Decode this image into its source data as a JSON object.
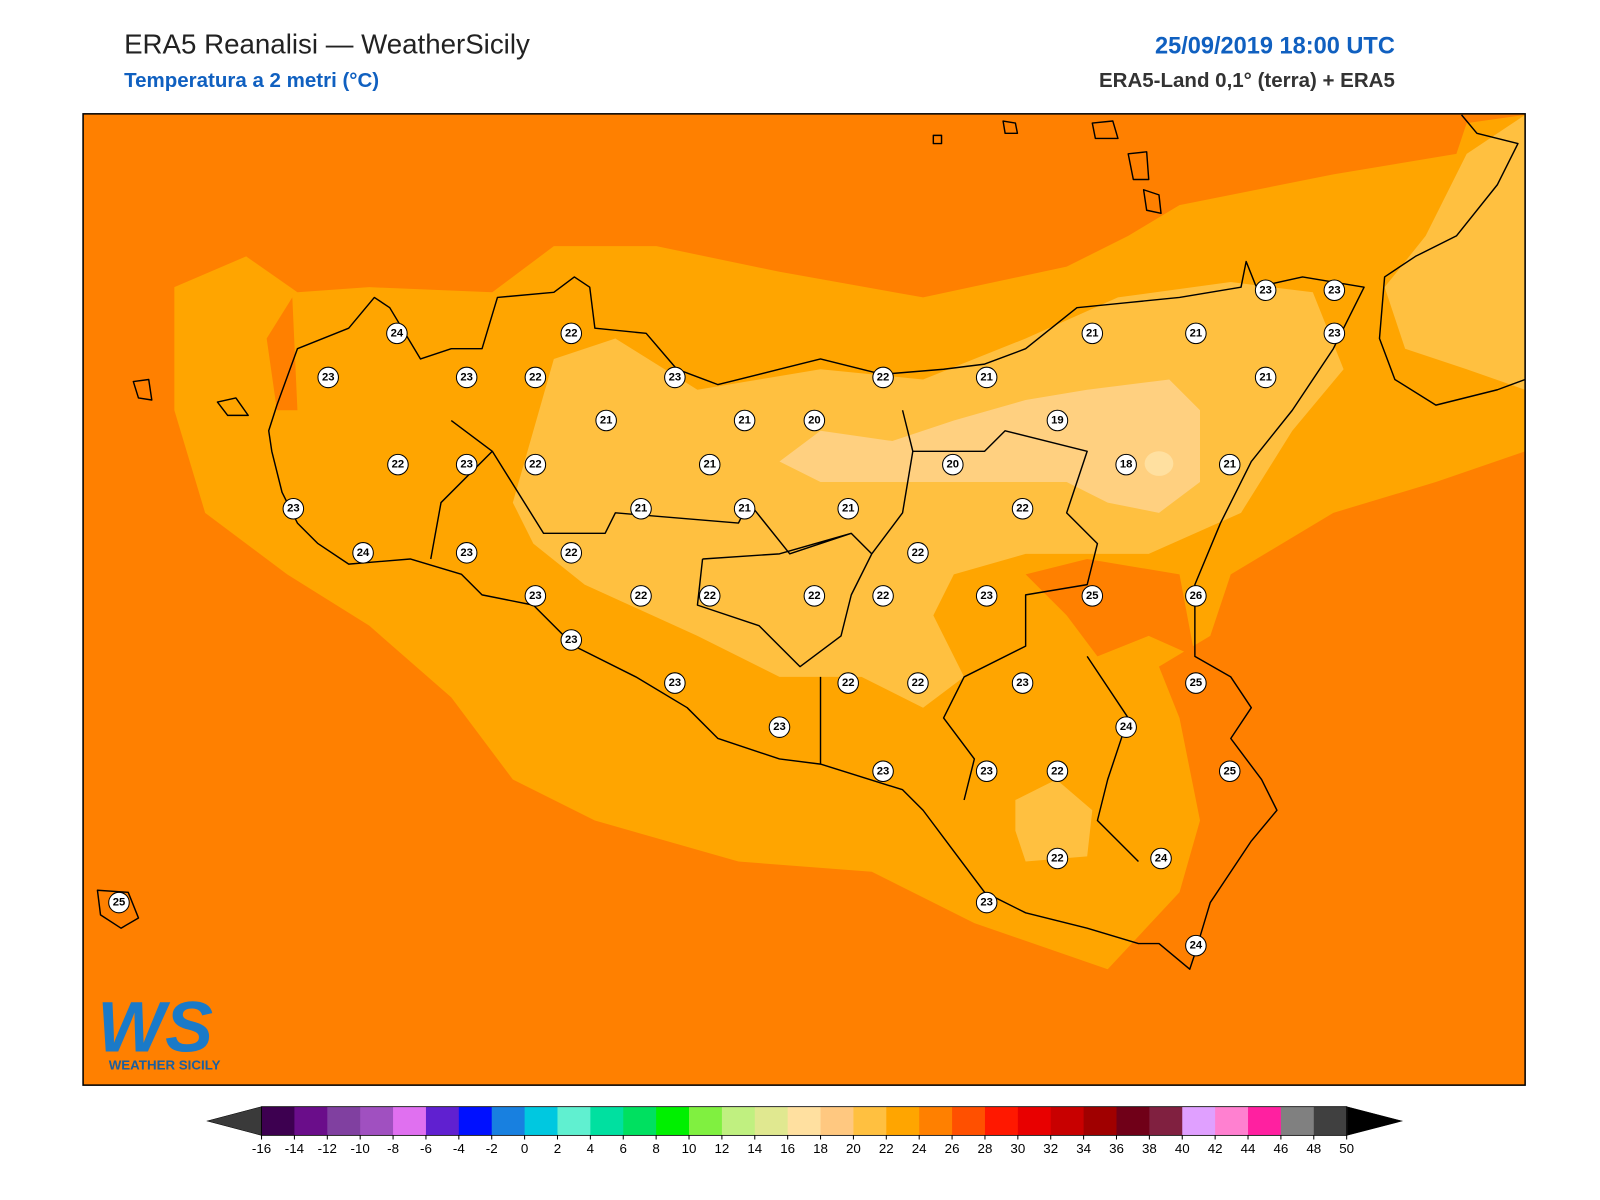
{
  "header": {
    "title": "ERA5 Reanalisi — WeatherSicily",
    "subtitle": "Temperatura a 2 metri (°C)",
    "date": "25/09/2019 18:00 UTC",
    "source": "ERA5-Land 0,1° (terra) + ERA5"
  },
  "logo": {
    "mark": "WS",
    "text": "WEATHER SICILY"
  },
  "stations": [
    24,
    22,
    23,
    23,
    22,
    23,
    22,
    21,
    21,
    21,
    23,
    23,
    23,
    21,
    21,
    21,
    20,
    19,
    22,
    23,
    22,
    21,
    20,
    18,
    21,
    23,
    21,
    21,
    21,
    22,
    24,
    23,
    22,
    22,
    23,
    22,
    22,
    22,
    22,
    23,
    25,
    26,
    23,
    23,
    22,
    22,
    23,
    25,
    24,
    23,
    23,
    23,
    22,
    25,
    22,
    24,
    23,
    24,
    25
  ],
  "colorbar": {
    "ticks": [
      -16,
      -14,
      -12,
      -10,
      -8,
      -6,
      -4,
      -2,
      0,
      2,
      4,
      6,
      8,
      10,
      12,
      14,
      16,
      18,
      20,
      22,
      24,
      26,
      28,
      30,
      32,
      34,
      36,
      38,
      40,
      42,
      44,
      46,
      48,
      50
    ],
    "colors": [
      "#3d0050",
      "#6a0d8a",
      "#8040a0",
      "#a050c0",
      "#e070f0",
      "#6020d0",
      "#0010ff",
      "#1880e0",
      "#00c8e0",
      "#60f0d0",
      "#00e0a0",
      "#00e060",
      "#00f000",
      "#80f040",
      "#c0f080",
      "#e0e890",
      "#ffe0a0",
      "#ffc880",
      "#ffc040",
      "#ffa500",
      "#ff8000",
      "#ff5000",
      "#ff1800",
      "#e80000",
      "#c80000",
      "#a00000",
      "#700018",
      "#802040",
      "#e0a0ff",
      "#ff80d0",
      "#ff20a0",
      "#808080",
      "#404040"
    ],
    "under": "#3a3a3a",
    "over": "#000000"
  }
}
